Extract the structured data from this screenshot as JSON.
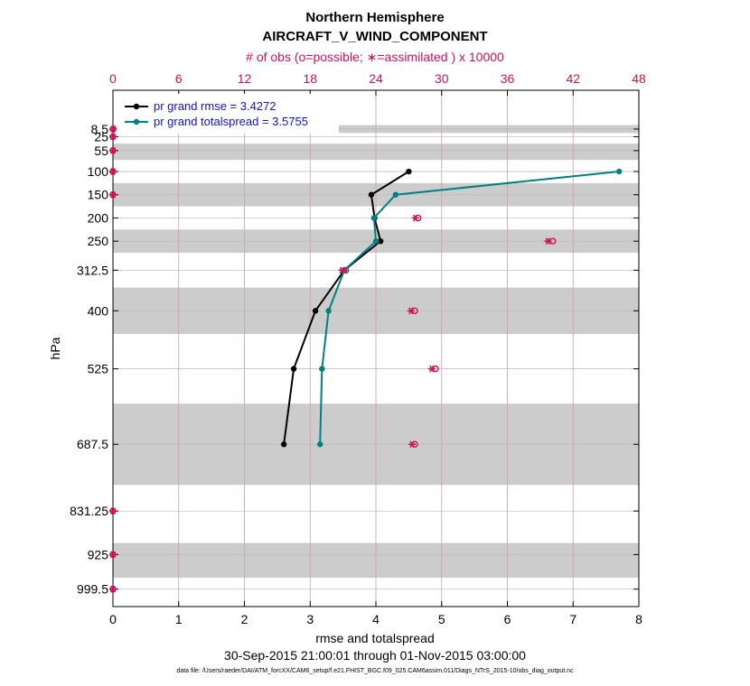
{
  "chart_data": {
    "type": "line",
    "title": "Northern Hemisphere",
    "subtitle": "AIRCRAFT_V_WIND_COMPONENT",
    "top_axis_label": "# of obs (o=possible; ∗=assimilated ) x 10000",
    "xlabel": "rmse and totalspread",
    "ylabel": "hPa",
    "date_range": "30-Sep-2015 21:00:01 through 01-Nov-2015 03:00:00",
    "data_file": "data file: /Users/raeder/DAI/ATM_forcXX/CAM6_setup/f.e21.FHIST_BGC.f09_025.CAM6assim.011/Diags_NTrS_2015-10/obs_diag_output.nc",
    "xlim": [
      0,
      8
    ],
    "x_ticks": [
      0,
      1,
      2,
      3,
      4,
      5,
      6,
      7,
      8
    ],
    "top_xlim": [
      0,
      48
    ],
    "top_ticks": [
      0,
      6,
      12,
      18,
      24,
      30,
      36,
      42,
      48
    ],
    "y_ticks": [
      "8.5",
      "25",
      "55",
      "100",
      "150",
      "200",
      "250",
      "312.5",
      "400",
      "525",
      "687.5",
      "831.25",
      "925",
      "999.5"
    ],
    "y_values": [
      8.5,
      25,
      55,
      100,
      150,
      200,
      250,
      312.5,
      400,
      525,
      687.5,
      831.25,
      925,
      999.5
    ],
    "ylim": [
      -75,
      1037
    ],
    "shaded_bands_hPa": [
      [
        0,
        17
      ],
      [
        40,
        75
      ],
      [
        125,
        175
      ],
      [
        225,
        275
      ],
      [
        350,
        450
      ],
      [
        600,
        775
      ],
      [
        900,
        975
      ]
    ],
    "series": [
      {
        "name": "pr grand rmse = 3.4272",
        "color": "#000000",
        "x": [
          4.5,
          3.93,
          3.98,
          4.07,
          3.52,
          3.08,
          2.75,
          2.6
        ],
        "y": [
          100,
          150,
          200,
          250,
          312.5,
          400,
          525,
          687.5
        ]
      },
      {
        "name": "pr grand totalspread = 3.5755",
        "color": "#008080",
        "x": [
          7.7,
          4.3,
          3.97,
          4.0,
          3.52,
          3.28,
          3.18,
          3.15
        ],
        "y": [
          100,
          150,
          200,
          250,
          312.5,
          400,
          525,
          687.5
        ]
      }
    ],
    "obs_counts_x10000": {
      "color": "#d0105a",
      "y": [
        8.5,
        25,
        55,
        100,
        150,
        200,
        250,
        312.5,
        400,
        525,
        687.5,
        831.25,
        925,
        999.5
      ],
      "possible": [
        0,
        0,
        0,
        0,
        0,
        27.6,
        39.9,
        21.0,
        27.3,
        29.2,
        27.3,
        0,
        0,
        0
      ],
      "assimilated": [
        0,
        0,
        0,
        0,
        0,
        27.6,
        39.7,
        20.9,
        27.2,
        29.1,
        27.3,
        0,
        0,
        0
      ]
    }
  }
}
